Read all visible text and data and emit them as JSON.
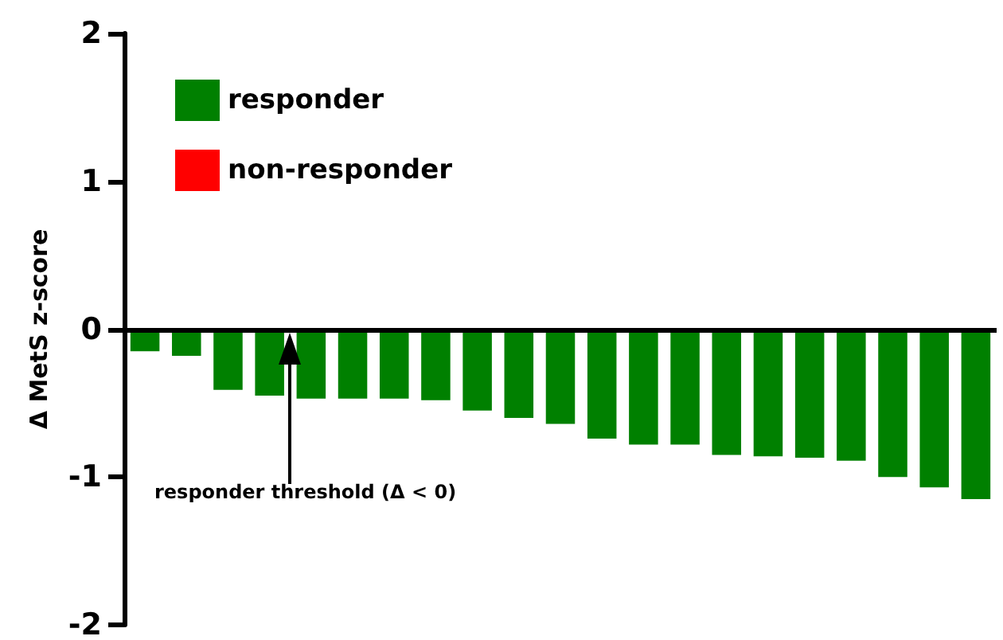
{
  "chart_data": {
    "type": "bar",
    "ylabel": "Δ MetS z-score",
    "categories": [
      null,
      null,
      null,
      null,
      null,
      null,
      null,
      null,
      null,
      null,
      null,
      null,
      null,
      null,
      null,
      null,
      null,
      null,
      null,
      null,
      null
    ],
    "series": [
      {
        "name": "responder",
        "color": "#008000",
        "values": [
          -0.15,
          -0.18,
          -0.41,
          -0.45,
          -0.47,
          -0.47,
          -0.47,
          -0.48,
          -0.55,
          -0.6,
          -0.64,
          -0.74,
          -0.78,
          -0.78,
          -0.85,
          -0.86,
          -0.87,
          -0.89,
          -1.0,
          -1.07,
          -1.15
        ]
      },
      {
        "name": "non-responder",
        "color": "#ff0000",
        "values": [
          null,
          null,
          null,
          null,
          null,
          null,
          null,
          null,
          null,
          null,
          null,
          null,
          null,
          null,
          null,
          null,
          null,
          null,
          null,
          null,
          null
        ]
      }
    ],
    "ylim": [
      -2,
      2
    ],
    "yticks": [
      -2,
      -1,
      0,
      1,
      2
    ],
    "grid": false,
    "legend": "top left",
    "tick_labels": "y",
    "ref_lines": [
      {
        "axis": "y",
        "value": 0,
        "label": "responder threshold (Δ < 0)",
        "color": "#000000"
      }
    ]
  }
}
